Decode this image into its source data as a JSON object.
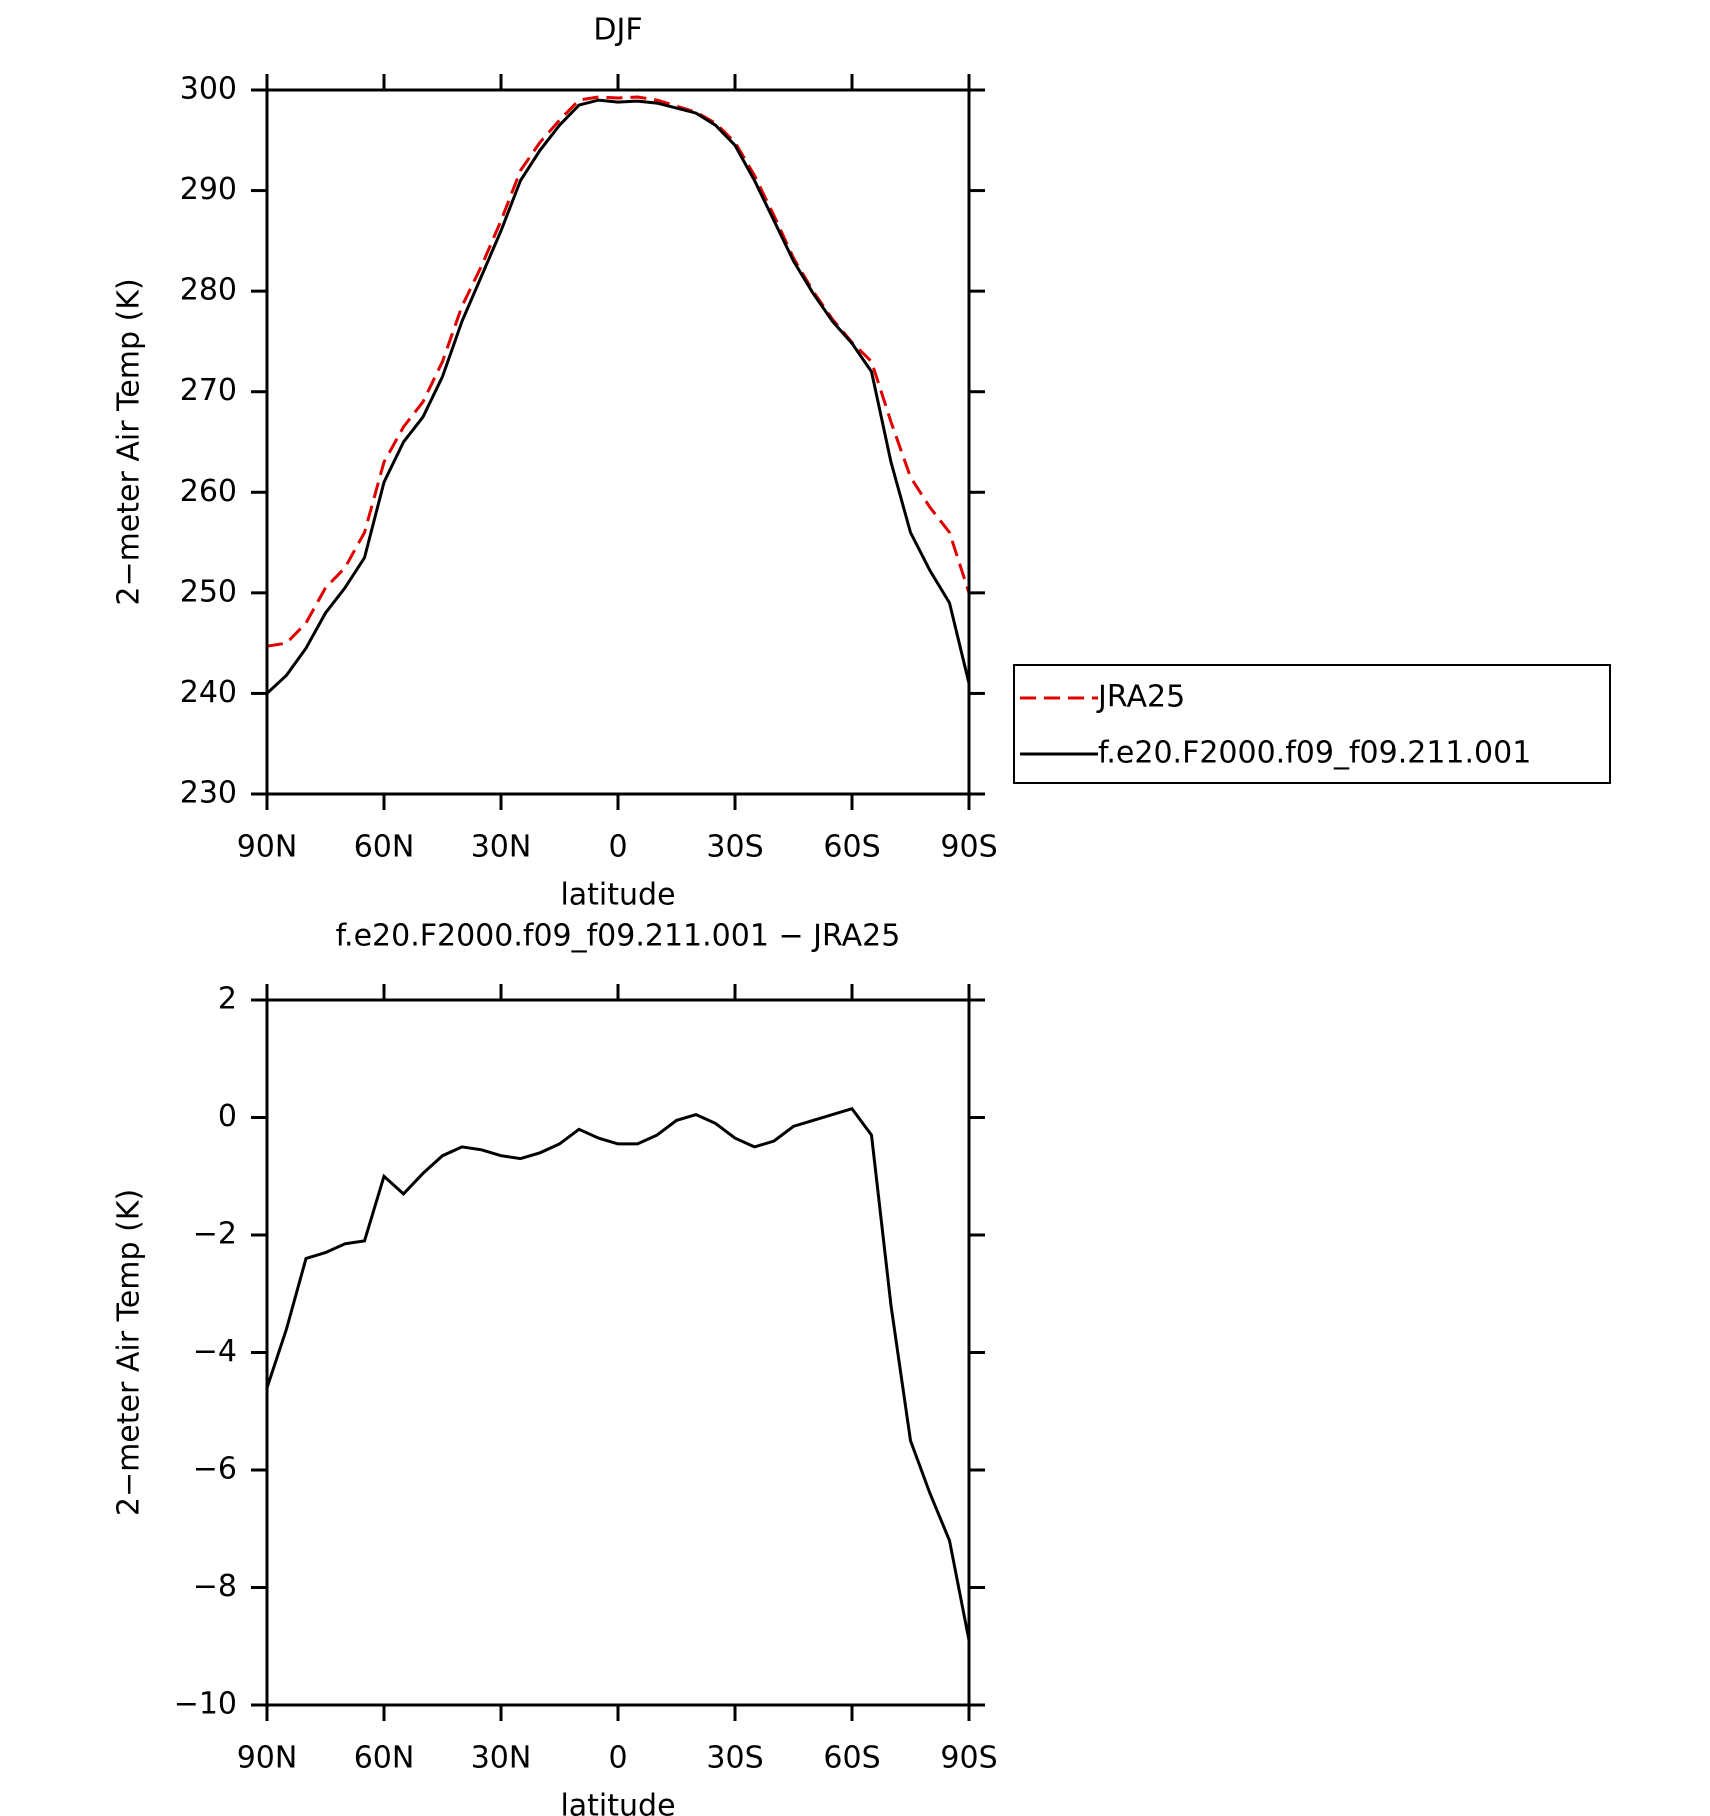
{
  "chart_data": [
    {
      "type": "line",
      "title": "DJF",
      "xlabel": "latitude",
      "ylabel": "2−meter Air Temp (K)",
      "x": [
        90,
        85,
        80,
        75,
        70,
        65,
        60,
        55,
        50,
        45,
        40,
        35,
        30,
        25,
        20,
        15,
        10,
        5,
        0,
        -5,
        -10,
        -15,
        -20,
        -25,
        -30,
        -35,
        -40,
        -45,
        -50,
        -55,
        -60,
        -65,
        -70,
        -75,
        -80,
        -85,
        -90
      ],
      "xlim": [
        90,
        -90
      ],
      "xticks": [
        {
          "value": 90,
          "label": "90N"
        },
        {
          "value": 60,
          "label": "60N"
        },
        {
          "value": 30,
          "label": "30N"
        },
        0,
        {
          "value": -30,
          "label": "30S"
        },
        {
          "value": -60,
          "label": "60S"
        },
        {
          "value": -90,
          "label": "90S"
        }
      ],
      "ylim": [
        230,
        300
      ],
      "yticks": [
        230,
        240,
        250,
        260,
        270,
        280,
        290,
        300
      ],
      "series": [
        {
          "name": "JRA25",
          "color": "#e00000",
          "dash": true,
          "values": [
            244.7,
            245,
            247,
            250.5,
            252.5,
            256,
            263,
            266.5,
            269,
            273,
            278.5,
            282.5,
            287,
            292,
            294.8,
            297,
            299,
            299.3,
            299.2,
            299.3,
            299,
            298.4,
            297.8,
            296.7,
            294.8,
            291.5,
            287.5,
            283.3,
            280,
            277.2,
            274.9,
            273,
            267,
            261.5,
            258.5,
            256,
            250
          ]
        },
        {
          "name": "f.e20.F2000.f09_f09.211.001",
          "color": "#000000",
          "dash": false,
          "values": [
            240,
            241.8,
            244.5,
            248,
            250.5,
            253.5,
            261,
            265,
            267.5,
            271.5,
            277,
            281.5,
            286,
            291,
            294,
            296.5,
            298.5,
            299,
            298.8,
            298.9,
            298.7,
            298.2,
            297.7,
            296.5,
            294.5,
            291,
            287,
            283,
            279.8,
            277,
            274.8,
            272,
            263,
            256,
            252.2,
            249,
            241
          ]
        }
      ]
    },
    {
      "type": "line",
      "title": "f.e20.F2000.f09_f09.211.001 − JRA25",
      "xlabel": "latitude",
      "ylabel": "2−meter Air Temp (K)",
      "x": [
        90,
        85,
        80,
        75,
        70,
        65,
        60,
        55,
        50,
        45,
        40,
        35,
        30,
        25,
        20,
        15,
        10,
        5,
        0,
        -5,
        -10,
        -15,
        -20,
        -25,
        -30,
        -35,
        -40,
        -45,
        -50,
        -55,
        -60,
        -65,
        -70,
        -75,
        -80,
        -85,
        -90
      ],
      "xlim": [
        90,
        -90
      ],
      "xticks": [
        {
          "value": 90,
          "label": "90N"
        },
        {
          "value": 60,
          "label": "60N"
        },
        {
          "value": 30,
          "label": "30N"
        },
        0,
        {
          "value": -30,
          "label": "30S"
        },
        {
          "value": -60,
          "label": "60S"
        },
        {
          "value": -90,
          "label": "90S"
        }
      ],
      "ylim": [
        -10,
        2
      ],
      "yticks": [
        {
          "value": -10,
          "label": "−10"
        },
        {
          "value": -8,
          "label": "−8"
        },
        {
          "value": -6,
          "label": "−6"
        },
        {
          "value": -4,
          "label": "−4"
        },
        {
          "value": -2,
          "label": "−2"
        },
        0,
        2
      ],
      "series": [
        {
          "color": "#000000",
          "dash": false,
          "values": [
            -4.6,
            -3.6,
            -2.4,
            -2.3,
            -2.15,
            -2.1,
            -1.0,
            -1.3,
            -0.95,
            -0.65,
            -0.5,
            -0.55,
            -0.65,
            -0.7,
            -0.6,
            -0.45,
            -0.2,
            -0.35,
            -0.45,
            -0.45,
            -0.3,
            -0.05,
            0.05,
            -0.1,
            -0.35,
            -0.5,
            -0.4,
            -0.15,
            -0.05,
            0.05,
            0.15,
            -0.3,
            -3.2,
            -5.5,
            -6.4,
            -7.2,
            -8.9
          ]
        }
      ]
    }
  ]
}
